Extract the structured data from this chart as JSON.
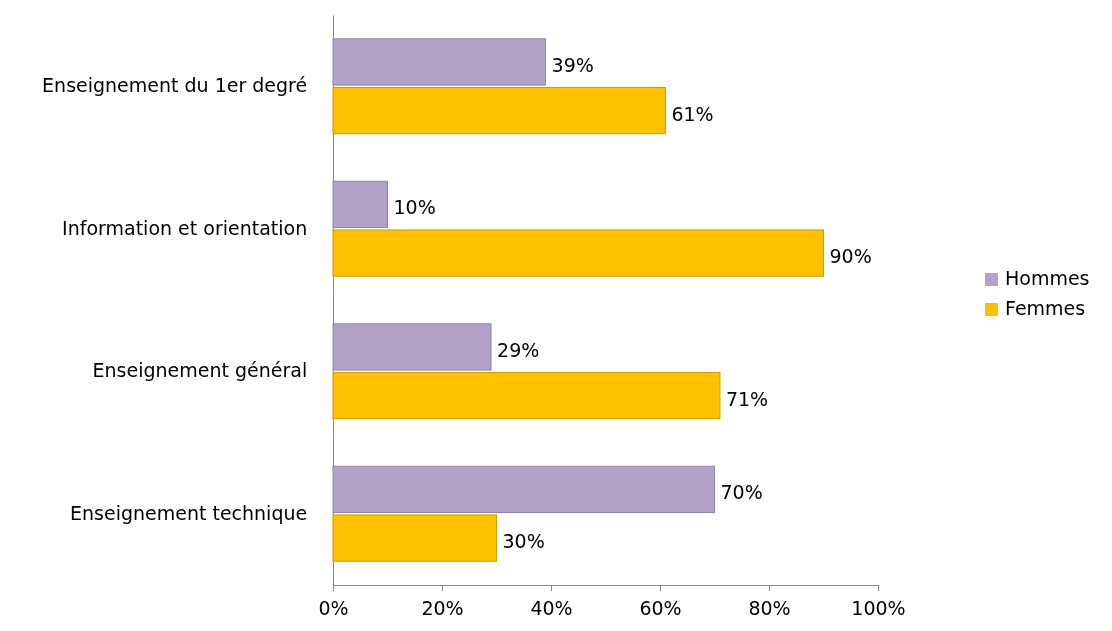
{
  "chart_data": {
    "type": "bar",
    "orientation": "horizontal",
    "categories": [
      "Enseignement du 1er degré",
      "Information et orientation",
      "Enseignement général",
      "Enseignement technique"
    ],
    "series": [
      {
        "name": "Hommes",
        "color": "#b3a2c7",
        "values": [
          39,
          10,
          29,
          70
        ],
        "value_labels": [
          "39%",
          "10%",
          "29%",
          "70%"
        ]
      },
      {
        "name": "Femmes",
        "color": "#ffc000",
        "values": [
          61,
          90,
          71,
          30
        ],
        "value_labels": [
          "61%",
          "90%",
          "71%",
          "30%"
        ]
      }
    ],
    "xlim": [
      0,
      100
    ],
    "xticks": [
      {
        "value": 0,
        "label": "0%"
      },
      {
        "value": 20,
        "label": "20%"
      },
      {
        "value": 40,
        "label": "40%"
      },
      {
        "value": 60,
        "label": "60%"
      },
      {
        "value": 80,
        "label": "80%"
      },
      {
        "value": 100,
        "label": "100%"
      }
    ],
    "grid": false,
    "legend": "right"
  }
}
